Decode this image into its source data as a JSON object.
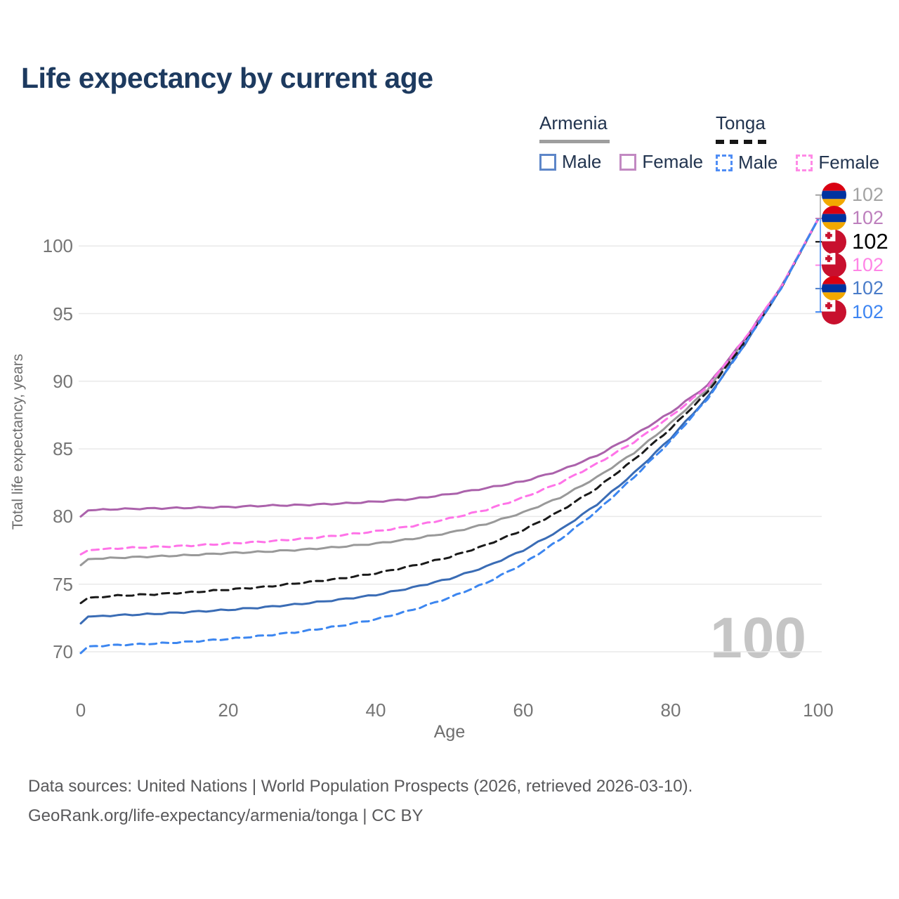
{
  "title": "Life expectancy by current age",
  "watermark": "100",
  "legend": {
    "groups": [
      {
        "name": "Armenia",
        "style": "solid",
        "items": [
          {
            "label": "Male",
            "color": "#5d86c8"
          },
          {
            "label": "Female",
            "color": "#c289c2"
          }
        ]
      },
      {
        "name": "Tonga",
        "style": "dashed",
        "items": [
          {
            "label": "Male",
            "color": "#4f8df5"
          },
          {
            "label": "Female",
            "color": "#ff8ae6"
          }
        ]
      }
    ]
  },
  "axes": {
    "y_title": "Total life expectancy, years",
    "x_title": "Age"
  },
  "footer": {
    "line1": "Data sources: United Nations | World Population Prospects (2026, retrieved 2026-03-10).",
    "line2": "GeoRank.org/life-expectancy/armenia/tonga | CC BY"
  },
  "colors": {
    "title_text": "#1d3a5f",
    "legend_text": "#22344f",
    "gridline": "#e9e9e9",
    "tick_text": "#757575",
    "watermark_text": "#c5c5c5",
    "footer_text": "#59595b"
  },
  "chart_data": {
    "type": "line",
    "title": "Life expectancy by current age",
    "xlabel": "Age",
    "ylabel": "Total life expectancy, years",
    "x_ticks": [
      0,
      20,
      40,
      60,
      80,
      100
    ],
    "y_ticks": [
      70,
      75,
      80,
      85,
      90,
      95,
      100
    ],
    "xlim": [
      0,
      100
    ],
    "ylim": [
      68,
      103
    ],
    "grid": "horizontal",
    "legend_position": "top-right",
    "series": [
      {
        "name": "Armenia Both sexes",
        "country": "Armenia",
        "sex": "both",
        "flag": "armenia",
        "color": "#999999",
        "label_color": "#a3a3a3",
        "dash": "solid",
        "end_label": "102",
        "points": [
          [
            0,
            76.4
          ],
          [
            1,
            76.85
          ],
          [
            5,
            76.95
          ],
          [
            10,
            77.05
          ],
          [
            15,
            77.15
          ],
          [
            20,
            77.3
          ],
          [
            25,
            77.4
          ],
          [
            30,
            77.55
          ],
          [
            35,
            77.75
          ],
          [
            40,
            78.0
          ],
          [
            45,
            78.35
          ],
          [
            50,
            78.8
          ],
          [
            55,
            79.45
          ],
          [
            60,
            80.3
          ],
          [
            65,
            81.4
          ],
          [
            70,
            82.9
          ],
          [
            75,
            84.7
          ],
          [
            80,
            86.9
          ],
          [
            85,
            89.4
          ],
          [
            90,
            93.0
          ],
          [
            95,
            97.0
          ],
          [
            100,
            102
          ]
        ]
      },
      {
        "name": "Armenia Female",
        "country": "Armenia",
        "sex": "female",
        "flag": "armenia",
        "color": "#ab62ab",
        "label_color": "#bd7fbd",
        "dash": "solid",
        "end_label": "102",
        "points": [
          [
            0,
            80.0
          ],
          [
            1,
            80.45
          ],
          [
            5,
            80.55
          ],
          [
            10,
            80.6
          ],
          [
            15,
            80.65
          ],
          [
            20,
            80.7
          ],
          [
            25,
            80.8
          ],
          [
            30,
            80.85
          ],
          [
            35,
            80.95
          ],
          [
            40,
            81.1
          ],
          [
            45,
            81.3
          ],
          [
            50,
            81.65
          ],
          [
            55,
            82.1
          ],
          [
            60,
            82.6
          ],
          [
            65,
            83.4
          ],
          [
            70,
            84.5
          ],
          [
            75,
            86.0
          ],
          [
            80,
            87.7
          ],
          [
            85,
            89.7
          ],
          [
            90,
            93.1
          ],
          [
            95,
            97.0
          ],
          [
            100,
            102
          ]
        ]
      },
      {
        "name": "Tonga Both sexes",
        "country": "Tonga",
        "sex": "both",
        "flag": "tonga",
        "color": "#1a1a1a",
        "label_color": "#000000",
        "dash": "dashed",
        "end_label": "102",
        "points": [
          [
            0,
            73.6
          ],
          [
            1,
            74.0
          ],
          [
            5,
            74.15
          ],
          [
            10,
            74.25
          ],
          [
            15,
            74.4
          ],
          [
            20,
            74.6
          ],
          [
            25,
            74.8
          ],
          [
            30,
            75.1
          ],
          [
            35,
            75.4
          ],
          [
            40,
            75.8
          ],
          [
            45,
            76.35
          ],
          [
            50,
            77.0
          ],
          [
            55,
            77.9
          ],
          [
            60,
            79.0
          ],
          [
            65,
            80.4
          ],
          [
            70,
            82.1
          ],
          [
            75,
            84.2
          ],
          [
            80,
            86.5
          ],
          [
            85,
            89.2
          ],
          [
            90,
            92.9
          ],
          [
            95,
            96.9
          ],
          [
            100,
            102
          ]
        ]
      },
      {
        "name": "Tonga Female",
        "country": "Tonga",
        "sex": "female",
        "flag": "tonga",
        "color": "#ff73e8",
        "label_color": "#ff85e6",
        "dash": "dashed",
        "end_label": "102",
        "points": [
          [
            0,
            77.2
          ],
          [
            1,
            77.5
          ],
          [
            5,
            77.65
          ],
          [
            10,
            77.75
          ],
          [
            15,
            77.85
          ],
          [
            20,
            78.0
          ],
          [
            25,
            78.15
          ],
          [
            30,
            78.35
          ],
          [
            35,
            78.6
          ],
          [
            40,
            78.9
          ],
          [
            45,
            79.3
          ],
          [
            50,
            79.85
          ],
          [
            55,
            80.5
          ],
          [
            60,
            81.4
          ],
          [
            65,
            82.5
          ],
          [
            70,
            83.9
          ],
          [
            75,
            85.5
          ],
          [
            80,
            87.4
          ],
          [
            85,
            89.6
          ],
          [
            90,
            93.1
          ],
          [
            95,
            97.0
          ],
          [
            100,
            102
          ]
        ]
      },
      {
        "name": "Armenia Male",
        "country": "Armenia",
        "sex": "male",
        "flag": "armenia",
        "color": "#3a6cb5",
        "label_color": "#4a7cc9",
        "dash": "solid",
        "end_label": "102",
        "points": [
          [
            0,
            72.1
          ],
          [
            1,
            72.6
          ],
          [
            5,
            72.7
          ],
          [
            10,
            72.8
          ],
          [
            15,
            72.95
          ],
          [
            20,
            73.1
          ],
          [
            25,
            73.3
          ],
          [
            30,
            73.55
          ],
          [
            35,
            73.85
          ],
          [
            40,
            74.2
          ],
          [
            45,
            74.75
          ],
          [
            50,
            75.4
          ],
          [
            55,
            76.3
          ],
          [
            60,
            77.5
          ],
          [
            65,
            79.0
          ],
          [
            70,
            80.9
          ],
          [
            75,
            83.2
          ],
          [
            80,
            85.8
          ],
          [
            85,
            88.8
          ],
          [
            90,
            92.7
          ],
          [
            95,
            96.9
          ],
          [
            100,
            102
          ]
        ]
      },
      {
        "name": "Tonga Male",
        "country": "Tonga",
        "sex": "male",
        "flag": "tonga",
        "color": "#3c86f0",
        "label_color": "#3d85f2",
        "dash": "dashed",
        "end_label": "102",
        "points": [
          [
            0,
            69.9
          ],
          [
            1,
            70.4
          ],
          [
            5,
            70.5
          ],
          [
            10,
            70.6
          ],
          [
            15,
            70.75
          ],
          [
            20,
            70.95
          ],
          [
            25,
            71.2
          ],
          [
            30,
            71.5
          ],
          [
            35,
            71.9
          ],
          [
            40,
            72.4
          ],
          [
            45,
            73.1
          ],
          [
            50,
            74.0
          ],
          [
            55,
            75.1
          ],
          [
            60,
            76.5
          ],
          [
            65,
            78.3
          ],
          [
            70,
            80.4
          ],
          [
            75,
            82.9
          ],
          [
            80,
            85.6
          ],
          [
            85,
            88.7
          ],
          [
            90,
            92.7
          ],
          [
            95,
            96.9
          ],
          [
            100,
            102
          ]
        ]
      }
    ]
  }
}
